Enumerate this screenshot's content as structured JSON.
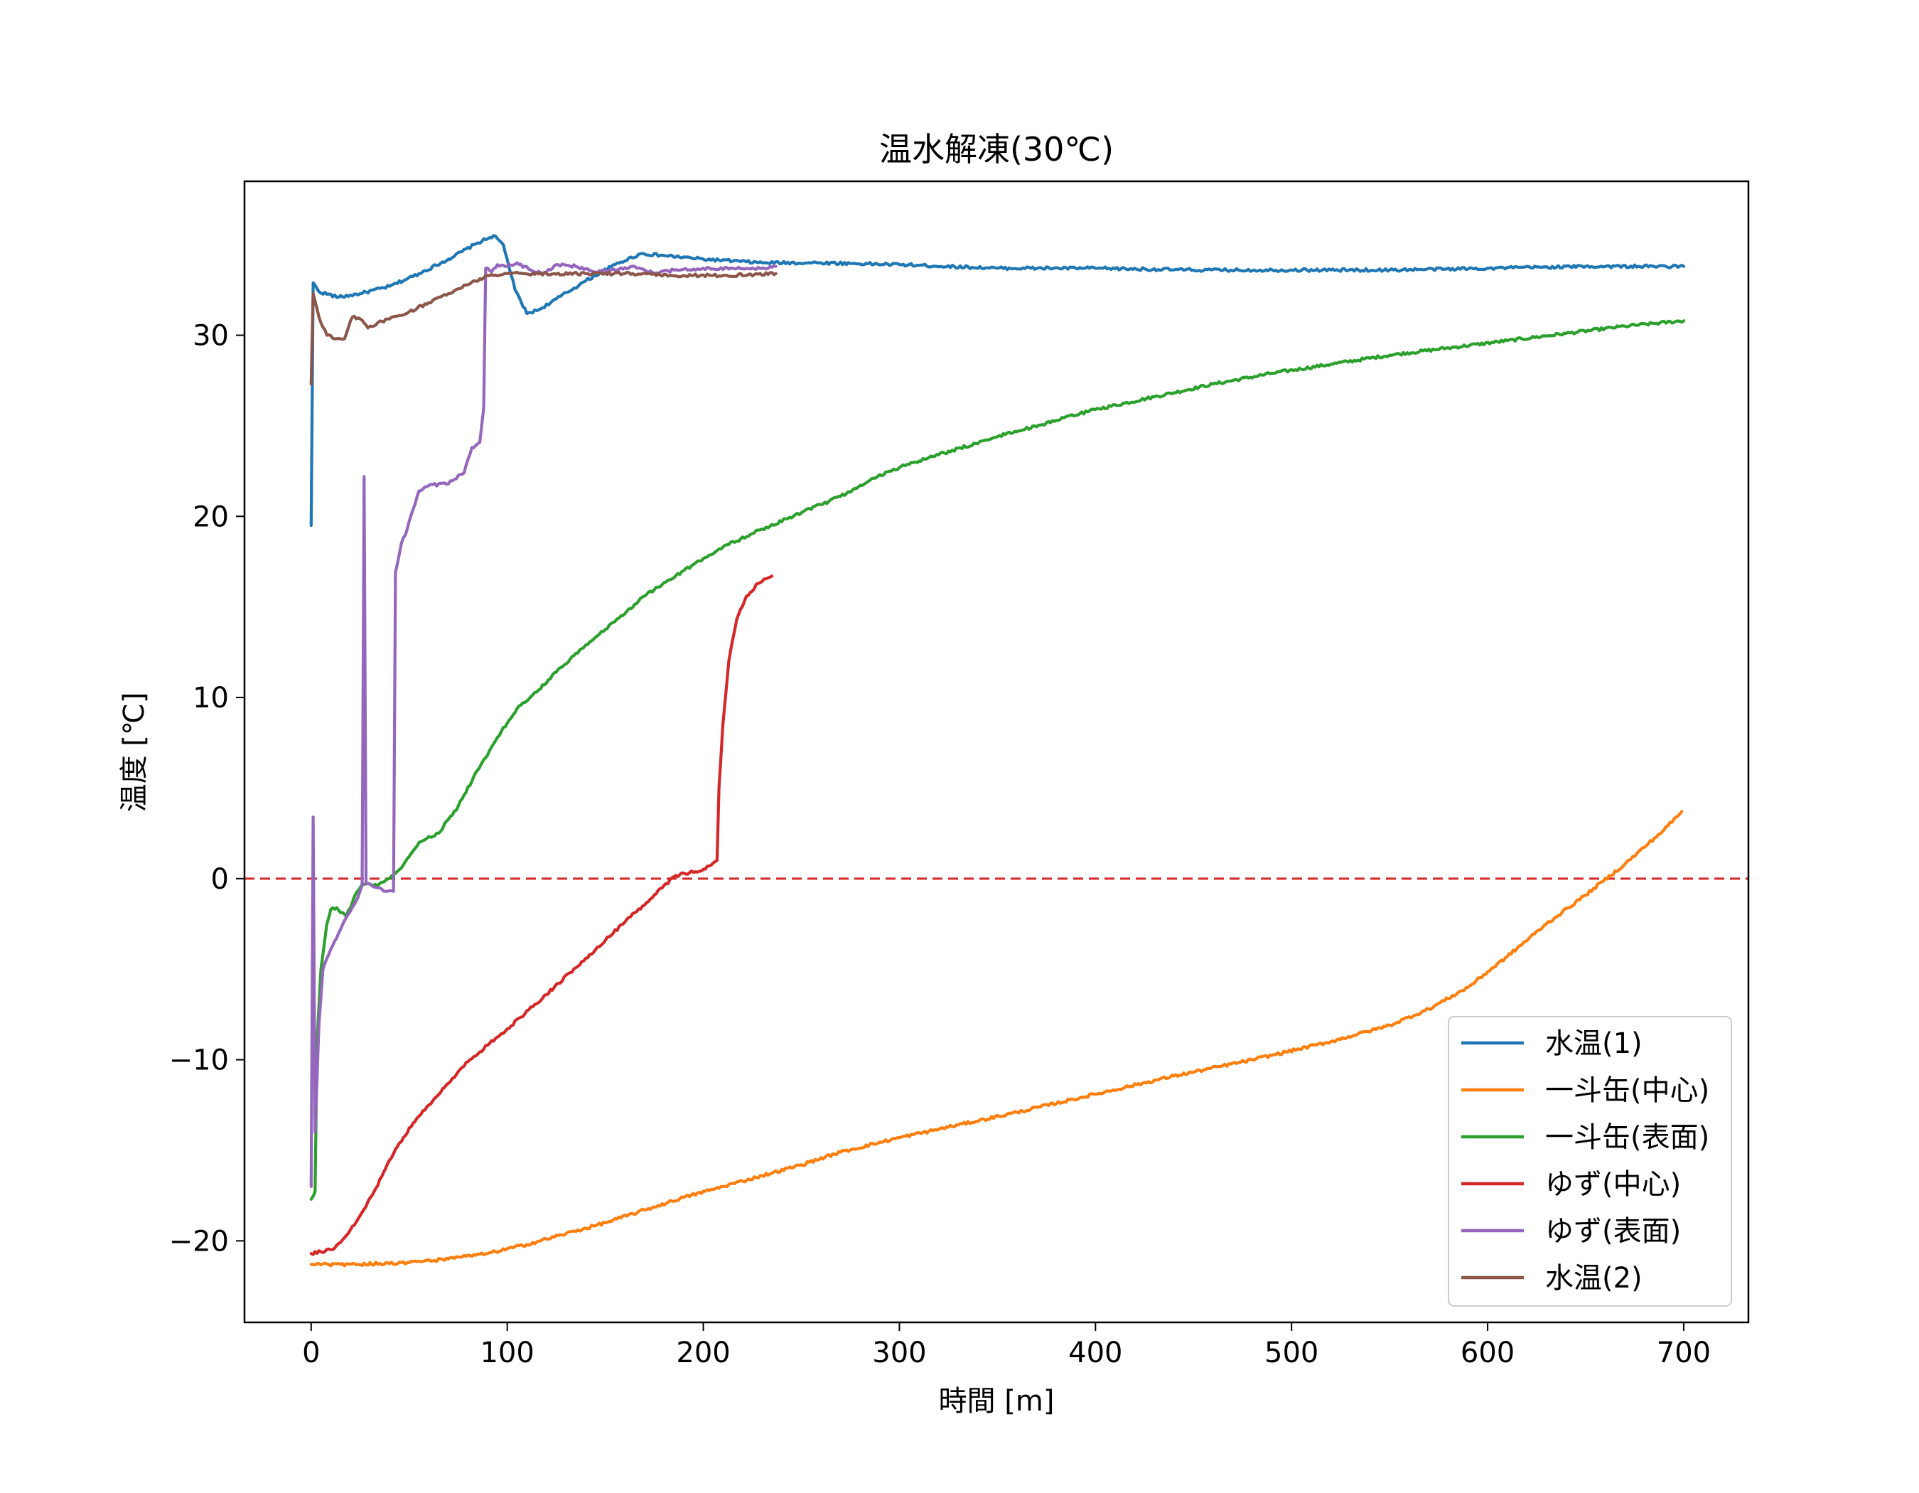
{
  "chart_data": {
    "type": "line",
    "title": "温水解凍(30℃)",
    "xlabel": "時間 [m]",
    "ylabel": "温度 [℃]",
    "xlim": [
      -34,
      733
    ],
    "ylim": [
      -24.5,
      38.5
    ],
    "xticks": [
      0,
      100,
      200,
      300,
      400,
      500,
      600,
      700
    ],
    "yticks": [
      -20,
      -10,
      0,
      10,
      20,
      30
    ],
    "ytick_labels": [
      "−20",
      "−10",
      "0",
      "10",
      "20",
      "30"
    ],
    "legend_position": "lower right",
    "reference_line": {
      "y": 0,
      "style": "dashed",
      "color": "#d62728"
    },
    "series": [
      {
        "name": "水温(1)",
        "color": "#1f77b4",
        "points": [
          [
            0,
            19.5
          ],
          [
            1,
            32.9
          ],
          [
            4,
            32.4
          ],
          [
            14,
            32.1
          ],
          [
            25,
            32.3
          ],
          [
            40,
            32.7
          ],
          [
            55,
            33.4
          ],
          [
            70,
            34.2
          ],
          [
            85,
            35.1
          ],
          [
            93,
            35.5
          ],
          [
            98,
            35.0
          ],
          [
            104,
            32.5
          ],
          [
            110,
            31.2
          ],
          [
            116,
            31.4
          ],
          [
            125,
            32.0
          ],
          [
            140,
            33.0
          ],
          [
            155,
            33.9
          ],
          [
            168,
            34.5
          ],
          [
            180,
            34.4
          ],
          [
            200,
            34.2
          ],
          [
            230,
            34.0
          ],
          [
            260,
            34.0
          ],
          [
            300,
            33.9
          ],
          [
            350,
            33.7
          ],
          [
            400,
            33.7
          ],
          [
            450,
            33.6
          ],
          [
            500,
            33.6
          ],
          [
            550,
            33.6
          ],
          [
            600,
            33.7
          ],
          [
            650,
            33.8
          ],
          [
            700,
            33.8
          ]
        ]
      },
      {
        "name": "一斗缶(中心)",
        "color": "#ff7f0e",
        "points": [
          [
            0,
            -21.3
          ],
          [
            20,
            -21.3
          ],
          [
            50,
            -21.2
          ],
          [
            70,
            -21.0
          ],
          [
            90,
            -20.7
          ],
          [
            110,
            -20.2
          ],
          [
            130,
            -19.6
          ],
          [
            150,
            -19.0
          ],
          [
            170,
            -18.3
          ],
          [
            190,
            -17.6
          ],
          [
            210,
            -17.0
          ],
          [
            230,
            -16.4
          ],
          [
            250,
            -15.8
          ],
          [
            270,
            -15.1
          ],
          [
            300,
            -14.3
          ],
          [
            330,
            -13.6
          ],
          [
            360,
            -12.9
          ],
          [
            400,
            -11.9
          ],
          [
            440,
            -10.9
          ],
          [
            480,
            -10.0
          ],
          [
            520,
            -9.0
          ],
          [
            550,
            -8.1
          ],
          [
            570,
            -7.2
          ],
          [
            590,
            -6.0
          ],
          [
            610,
            -4.3
          ],
          [
            630,
            -2.5
          ],
          [
            650,
            -0.9
          ],
          [
            670,
            0.8
          ],
          [
            690,
            2.7
          ],
          [
            699,
            3.7
          ]
        ]
      },
      {
        "name": "一斗缶(表面)",
        "color": "#2ca02c",
        "points": [
          [
            0,
            -17.7
          ],
          [
            2,
            -17.3
          ],
          [
            3,
            -9.0
          ],
          [
            5,
            -5.0
          ],
          [
            8,
            -2.5
          ],
          [
            10,
            -1.7
          ],
          [
            13,
            -1.6
          ],
          [
            18,
            -2.1
          ],
          [
            22,
            -1.0
          ],
          [
            26,
            -0.3
          ],
          [
            30,
            -0.3
          ],
          [
            34,
            -0.4
          ],
          [
            40,
            0.0
          ],
          [
            45,
            0.5
          ],
          [
            55,
            2.0
          ],
          [
            65,
            2.5
          ],
          [
            75,
            4.0
          ],
          [
            85,
            6.0
          ],
          [
            95,
            7.8
          ],
          [
            105,
            9.4
          ],
          [
            115,
            10.3
          ],
          [
            125,
            11.4
          ],
          [
            140,
            12.9
          ],
          [
            155,
            14.2
          ],
          [
            170,
            15.6
          ],
          [
            190,
            17.0
          ],
          [
            210,
            18.3
          ],
          [
            230,
            19.3
          ],
          [
            250,
            20.2
          ],
          [
            270,
            21.1
          ],
          [
            285,
            22.0
          ],
          [
            300,
            22.7
          ],
          [
            320,
            23.4
          ],
          [
            350,
            24.4
          ],
          [
            380,
            25.3
          ],
          [
            400,
            25.9
          ],
          [
            430,
            26.6
          ],
          [
            460,
            27.3
          ],
          [
            490,
            27.9
          ],
          [
            520,
            28.4
          ],
          [
            550,
            28.9
          ],
          [
            580,
            29.3
          ],
          [
            610,
            29.7
          ],
          [
            640,
            30.1
          ],
          [
            670,
            30.5
          ],
          [
            700,
            30.8
          ]
        ]
      },
      {
        "name": "ゆず(中心)",
        "color": "#d62728",
        "points": [
          [
            0,
            -20.7
          ],
          [
            5,
            -20.6
          ],
          [
            12,
            -20.4
          ],
          [
            18,
            -19.7
          ],
          [
            25,
            -18.6
          ],
          [
            32,
            -17.3
          ],
          [
            38,
            -16.0
          ],
          [
            45,
            -14.6
          ],
          [
            52,
            -13.5
          ],
          [
            60,
            -12.5
          ],
          [
            70,
            -11.3
          ],
          [
            80,
            -10.1
          ],
          [
            90,
            -9.2
          ],
          [
            100,
            -8.3
          ],
          [
            120,
            -6.4
          ],
          [
            140,
            -4.4
          ],
          [
            160,
            -2.4
          ],
          [
            175,
            -0.9
          ],
          [
            185,
            0.1
          ],
          [
            190,
            0.3
          ],
          [
            198,
            0.4
          ],
          [
            203,
            0.7
          ],
          [
            207,
            1.0
          ],
          [
            208,
            5.0
          ],
          [
            210,
            8.5
          ],
          [
            213,
            12.0
          ],
          [
            217,
            14.3
          ],
          [
            222,
            15.6
          ],
          [
            228,
            16.3
          ],
          [
            235,
            16.7
          ]
        ]
      },
      {
        "name": "ゆず(表面)",
        "color": "#9467bd",
        "points": [
          [
            0,
            -17.0
          ],
          [
            1,
            3.4
          ],
          [
            2,
            -14.0
          ],
          [
            4,
            -8.0
          ],
          [
            6,
            -5.0
          ],
          [
            10,
            -3.9
          ],
          [
            15,
            -2.8
          ],
          [
            20,
            -1.8
          ],
          [
            24,
            -1.0
          ],
          [
            26,
            -0.4
          ],
          [
            27,
            22.2
          ],
          [
            28,
            -0.3
          ],
          [
            31,
            -0.4
          ],
          [
            34,
            -0.5
          ],
          [
            38,
            -0.7
          ],
          [
            42,
            -0.7
          ],
          [
            43,
            16.9
          ],
          [
            46,
            18.5
          ],
          [
            49,
            19.3
          ],
          [
            52,
            20.4
          ],
          [
            55,
            21.4
          ],
          [
            60,
            21.7
          ],
          [
            70,
            21.8
          ],
          [
            78,
            22.4
          ],
          [
            82,
            23.8
          ],
          [
            86,
            24.1
          ],
          [
            88,
            26.0
          ],
          [
            89,
            33.7
          ],
          [
            92,
            33.5
          ],
          [
            95,
            33.9
          ],
          [
            100,
            33.8
          ],
          [
            105,
            34.0
          ],
          [
            112,
            33.6
          ],
          [
            118,
            33.4
          ],
          [
            125,
            33.9
          ],
          [
            135,
            33.8
          ],
          [
            145,
            33.5
          ],
          [
            155,
            33.6
          ],
          [
            165,
            33.8
          ],
          [
            175,
            33.4
          ],
          [
            185,
            33.6
          ],
          [
            200,
            33.7
          ],
          [
            215,
            33.7
          ],
          [
            230,
            33.7
          ],
          [
            237,
            33.8
          ]
        ]
      },
      {
        "name": "水温(2)",
        "color": "#8c564b",
        "points": [
          [
            0,
            27.3
          ],
          [
            1,
            32.3
          ],
          [
            4,
            31.0
          ],
          [
            8,
            30.0
          ],
          [
            12,
            29.8
          ],
          [
            17,
            29.8
          ],
          [
            21,
            31.0
          ],
          [
            25,
            30.9
          ],
          [
            29,
            30.4
          ],
          [
            34,
            30.7
          ],
          [
            40,
            30.9
          ],
          [
            50,
            31.3
          ],
          [
            60,
            31.8
          ],
          [
            70,
            32.3
          ],
          [
            80,
            32.8
          ],
          [
            90,
            33.3
          ],
          [
            100,
            33.4
          ],
          [
            120,
            33.4
          ],
          [
            140,
            33.4
          ],
          [
            160,
            33.4
          ],
          [
            190,
            33.3
          ],
          [
            210,
            33.3
          ],
          [
            237,
            33.4
          ]
        ]
      }
    ]
  }
}
